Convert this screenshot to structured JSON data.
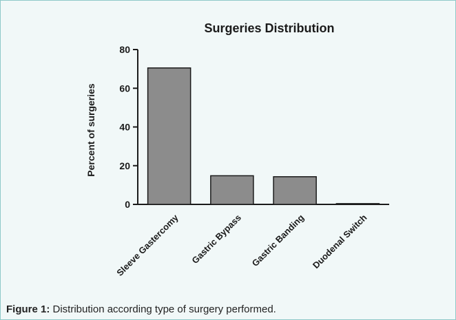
{
  "chart_data": {
    "type": "bar",
    "title": "Surgeries Distribution",
    "ylabel": "Percent of surgeries",
    "xlabel": "",
    "categories": [
      "Sleeve Gastercomy",
      "Gastric Bypass",
      "Gastric Banding",
      "Duodenal Switch"
    ],
    "values": [
      70.5,
      14.8,
      14.3,
      0.4
    ],
    "ylim": [
      0,
      80
    ],
    "yticks": [
      0,
      20,
      40,
      60,
      80
    ],
    "grid": false,
    "bar_color": "#8c8c8c"
  },
  "caption": {
    "label": "Figure 1:",
    "text": " Distribution according type of surgery performed."
  }
}
